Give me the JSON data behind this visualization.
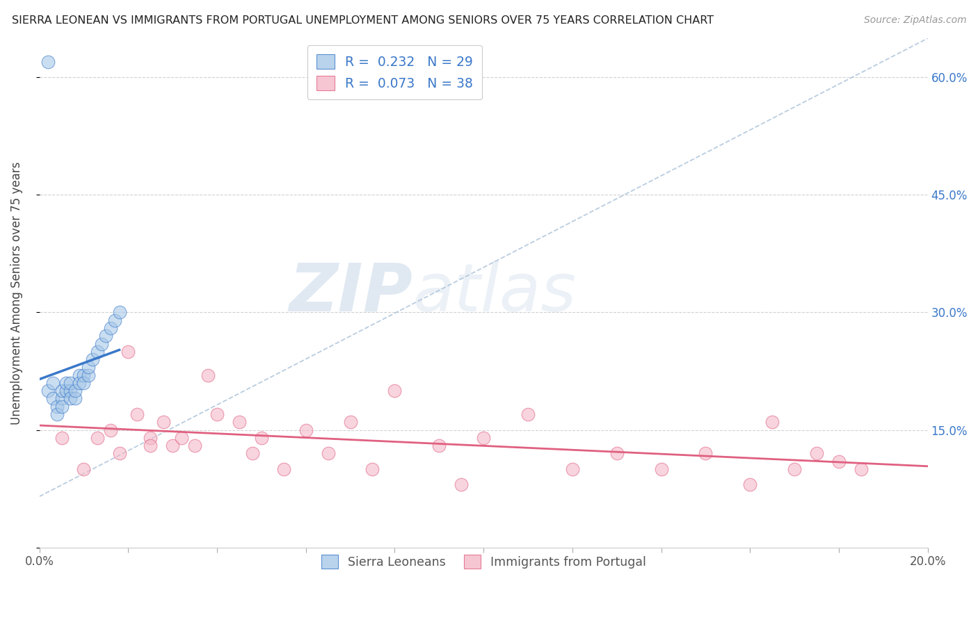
{
  "title": "SIERRA LEONEAN VS IMMIGRANTS FROM PORTUGAL UNEMPLOYMENT AMONG SENIORS OVER 75 YEARS CORRELATION CHART",
  "source": "Source: ZipAtlas.com",
  "ylabel": "Unemployment Among Seniors over 75 years",
  "xlim": [
    0.0,
    0.2
  ],
  "ylim": [
    0.0,
    0.65
  ],
  "color_blue": "#a8c8e8",
  "color_pink": "#f4b8c8",
  "color_blue_line": "#3a78c9",
  "color_pink_line": "#e06080",
  "color_dashed": "#a8c0d8",
  "sierra_x": [
    0.002,
    0.003,
    0.003,
    0.004,
    0.004,
    0.005,
    0.005,
    0.005,
    0.006,
    0.006,
    0.007,
    0.007,
    0.007,
    0.008,
    0.008,
    0.009,
    0.009,
    0.01,
    0.01,
    0.011,
    0.011,
    0.012,
    0.013,
    0.014,
    0.015,
    0.016,
    0.017,
    0.018,
    0.002
  ],
  "sierra_y": [
    0.2,
    0.21,
    0.19,
    0.18,
    0.17,
    0.19,
    0.2,
    0.18,
    0.2,
    0.21,
    0.2,
    0.19,
    0.21,
    0.19,
    0.2,
    0.22,
    0.21,
    0.22,
    0.21,
    0.22,
    0.23,
    0.24,
    0.25,
    0.26,
    0.27,
    0.28,
    0.29,
    0.3,
    0.62
  ],
  "portugal_x": [
    0.005,
    0.01,
    0.013,
    0.016,
    0.018,
    0.02,
    0.022,
    0.025,
    0.025,
    0.028,
    0.03,
    0.032,
    0.035,
    0.038,
    0.04,
    0.045,
    0.048,
    0.05,
    0.055,
    0.06,
    0.065,
    0.07,
    0.075,
    0.08,
    0.09,
    0.095,
    0.1,
    0.11,
    0.12,
    0.13,
    0.14,
    0.15,
    0.16,
    0.165,
    0.17,
    0.175,
    0.18,
    0.185
  ],
  "portugal_y": [
    0.14,
    0.1,
    0.14,
    0.15,
    0.12,
    0.25,
    0.17,
    0.14,
    0.13,
    0.16,
    0.13,
    0.14,
    0.13,
    0.22,
    0.17,
    0.16,
    0.12,
    0.14,
    0.1,
    0.15,
    0.12,
    0.16,
    0.1,
    0.2,
    0.13,
    0.08,
    0.14,
    0.17,
    0.1,
    0.12,
    0.1,
    0.12,
    0.08,
    0.16,
    0.1,
    0.12,
    0.11,
    0.1
  ],
  "watermark_zip": "ZIP",
  "watermark_atlas": "atlas",
  "background_color": "#ffffff"
}
